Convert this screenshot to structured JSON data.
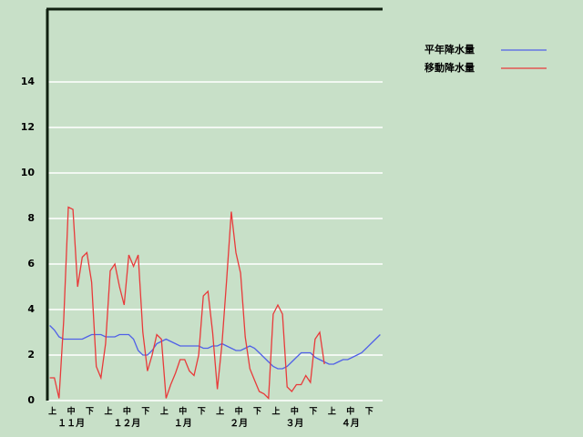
{
  "chart_data": {
    "type": "line",
    "categories": [
      null,
      "上",
      null,
      null,
      null,
      "中",
      null,
      null,
      null,
      "下",
      null,
      null,
      null,
      "上",
      null,
      null,
      null,
      "中",
      null,
      null,
      null,
      "下",
      null,
      null,
      null,
      "上",
      null,
      null,
      null,
      "中",
      null,
      null,
      null,
      "下",
      null,
      null,
      null,
      "上",
      null,
      null,
      null,
      "中",
      null,
      null,
      null,
      "下",
      null,
      null,
      null,
      "上",
      null,
      null,
      null,
      "中",
      null,
      null,
      null,
      "下",
      null,
      null,
      null,
      "上",
      null,
      null,
      null,
      "中",
      null,
      null,
      null,
      "下",
      null,
      null
    ],
    "month_labels": [
      "１１月",
      "１２月",
      "１月",
      "２月",
      "３月",
      "４月"
    ],
    "series": [
      {
        "name": "平年降水量",
        "color": "#5060e8",
        "values": [
          3.3,
          3.1,
          2.8,
          2.7,
          2.7,
          2.7,
          2.7,
          2.7,
          2.8,
          2.9,
          2.9,
          2.9,
          2.8,
          2.8,
          2.8,
          2.9,
          2.9,
          2.9,
          2.7,
          2.2,
          2.0,
          2.0,
          2.2,
          2.5,
          2.6,
          2.7,
          2.6,
          2.5,
          2.4,
          2.4,
          2.4,
          2.4,
          2.4,
          2.3,
          2.3,
          2.4,
          2.4,
          2.5,
          2.4,
          2.3,
          2.2,
          2.2,
          2.3,
          2.4,
          2.3,
          2.1,
          1.9,
          1.7,
          1.5,
          1.4,
          1.4,
          1.5,
          1.7,
          1.9,
          2.1,
          2.1,
          2.1,
          1.9,
          1.8,
          1.7,
          1.6,
          1.6,
          1.7,
          1.8,
          1.8,
          1.9,
          2.0,
          2.1,
          2.3,
          2.5,
          2.7,
          2.9
        ]
      },
      {
        "name": "移動降水量",
        "color": "#e83a3a",
        "values": [
          1.0,
          1.0,
          0.1,
          3.5,
          8.5,
          8.4,
          5.0,
          6.3,
          6.5,
          5.2,
          1.5,
          1.0,
          2.5,
          5.7,
          6.0,
          5.0,
          4.2,
          6.4,
          5.9,
          6.4,
          3.0,
          1.3,
          2.0,
          2.9,
          2.7,
          0.1,
          0.7,
          1.2,
          1.8,
          1.8,
          1.3,
          1.1,
          2.0,
          4.6,
          4.8,
          3.0,
          0.5,
          2.5,
          5.3,
          8.3,
          6.5,
          5.6,
          2.8,
          1.4,
          0.9,
          0.4,
          0.3,
          0.1,
          3.8,
          4.2,
          3.8,
          0.6,
          0.4,
          0.7,
          0.7,
          1.1,
          0.8,
          2.7,
          3.0,
          1.6,
          null,
          null,
          null,
          null,
          null,
          null,
          null,
          null,
          null,
          null,
          null,
          null
        ]
      }
    ],
    "ylim": [
      0,
      17.2
    ],
    "yticks": [
      0,
      2,
      4,
      6,
      8,
      10,
      12,
      14
    ],
    "grid": true
  }
}
